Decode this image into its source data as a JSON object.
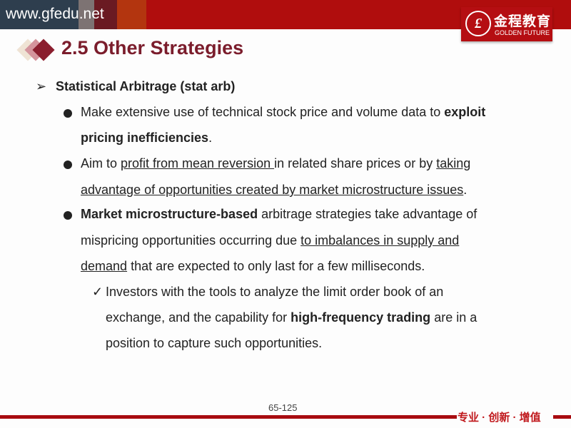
{
  "header": {
    "site": "www.gfedu.net",
    "logo": {
      "mark": "£",
      "cn": "金程教育",
      "en": "GOLDEN FUTURE"
    }
  },
  "title": "2.5 Other Strategies",
  "heading": "Statistical Arbitrage (stat arb)",
  "lines": {
    "l1a": "Make extensive use of technical stock price and volume data to ",
    "l1b": "exploit",
    "l2": "pricing inefficiencies",
    "l2p": ".",
    "l3a": "Aim to ",
    "l3b": "profit from mean reversion ",
    "l3c": "in related share prices or by ",
    "l3d": "taking",
    "l4a": "advantage of opportunities created by market microstructure issues",
    "l4b": ".",
    "l5a": "Market microstructure-based",
    "l5b": " arbitrage strategies take advantage of",
    "l6a": "mispricing opportunities occurring due ",
    "l6b": "to imbalances in supply and",
    "l7a": "demand",
    "l7b": " that are expected to only last for a few milliseconds.",
    "l8": "Investors with the tools to analyze the limit order book of an",
    "l9a": "exchange, and the capability for ",
    "l9b": "high-frequency trading",
    "l9c": " are in a",
    "l10": "position to capture such opportunities."
  },
  "icons": {
    "arrow": "➢",
    "check": "✓"
  },
  "footer": {
    "page": "65-125",
    "slogan": "专业 · 创新 · 增值"
  },
  "colors": {
    "brand_red": "#b00d0d",
    "title": "#7b1d2c"
  }
}
